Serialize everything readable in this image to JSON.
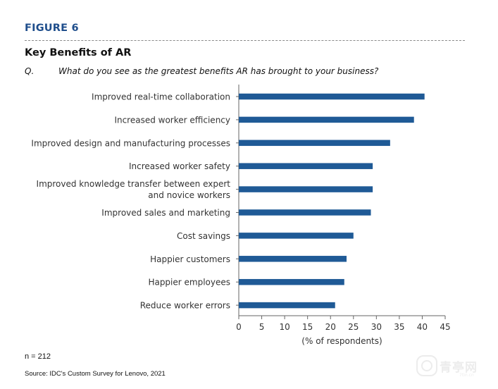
{
  "figure_label": "FIGURE 6",
  "title": "Key Benefits of AR",
  "question_label": "Q.",
  "question_text": "What do you see as the greatest benefits AR has brought to your business?",
  "note": "n = 212",
  "source": "Source: IDC's Custom Survey for Lenovo, 2021",
  "watermark": "青亭网",
  "watermark_sub": "7tin.cn",
  "colors": {
    "bar": "#1f5a96",
    "title": "#1f4e8c",
    "axis": "#666666"
  },
  "chart_data": {
    "type": "bar",
    "orientation": "horizontal",
    "title": "Key Benefits of AR",
    "xlabel": "(% of respondents)",
    "ylabel": "",
    "xlim": [
      0,
      45
    ],
    "xticks": [
      0,
      5,
      10,
      15,
      20,
      25,
      30,
      35,
      40,
      45
    ],
    "grid": false,
    "categories": [
      [
        "Improved real-time collaboration"
      ],
      [
        "Increased worker efficiency"
      ],
      [
        "Improved design and manufacturing processes"
      ],
      [
        "Increased worker safety"
      ],
      [
        "Improved knowledge transfer between expert",
        "and novice workers"
      ],
      [
        "Improved sales and marketing"
      ],
      [
        "Cost savings"
      ],
      [
        "Happier customers"
      ],
      [
        "Happier employees"
      ],
      [
        "Reduce worker errors"
      ]
    ],
    "values": [
      40.5,
      38.2,
      33.0,
      29.2,
      29.2,
      28.8,
      25.0,
      23.5,
      23.0,
      21.0
    ]
  }
}
